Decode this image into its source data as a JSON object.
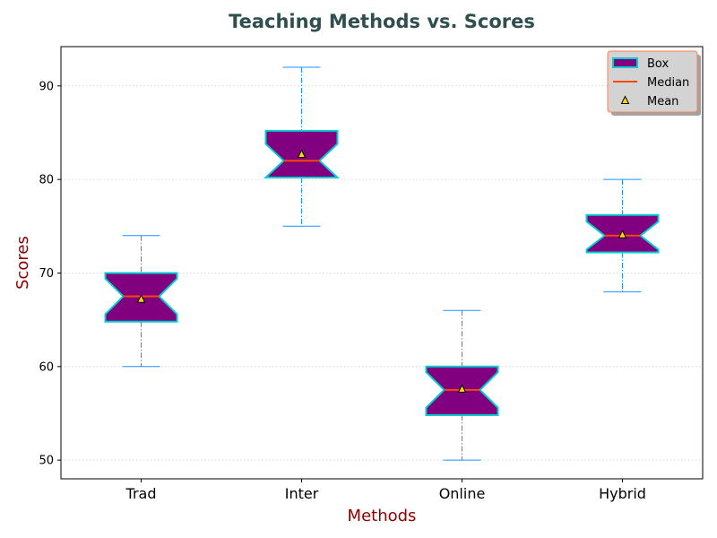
{
  "chart_data": {
    "type": "boxplot",
    "title": "Teaching Methods vs. Scores",
    "xlabel": "Methods",
    "ylabel": "Scores",
    "ylim": [
      48,
      94.2
    ],
    "yticks": [
      50,
      60,
      70,
      80,
      90
    ],
    "grid": "y-dotted",
    "legend_position": "top-right",
    "legend": [
      {
        "key": "box",
        "label": "Box"
      },
      {
        "key": "median",
        "label": "Median"
      },
      {
        "key": "mean",
        "label": "Mean"
      }
    ],
    "categories": [
      "Trad",
      "Inter",
      "Online",
      "Hybrid"
    ],
    "boxes": [
      {
        "name": "Trad",
        "whisker_low": 60,
        "q1": 64.8,
        "median": 67.5,
        "q3": 70,
        "whisker_high": 74,
        "mean": 67.2,
        "notch_low": 65.6,
        "notch_high": 69.4
      },
      {
        "name": "Inter",
        "whisker_low": 75,
        "q1": 80.2,
        "median": 82,
        "q3": 85.2,
        "whisker_high": 92,
        "mean": 82.7,
        "notch_low": 80.2,
        "notch_high": 83.8
      },
      {
        "name": "Online",
        "whisker_low": 50,
        "q1": 54.8,
        "median": 57.5,
        "q3": 60,
        "whisker_high": 66,
        "mean": 57.6,
        "notch_low": 55.6,
        "notch_high": 59.4
      },
      {
        "name": "Hybrid",
        "whisker_low": 68,
        "q1": 72.2,
        "median": 74,
        "q3": 76.2,
        "whisker_high": 80,
        "mean": 74.1,
        "notch_low": 72.5,
        "notch_high": 75.5
      }
    ],
    "colors": {
      "box_fill": "#800080",
      "box_edge": "#00ced1",
      "whisker": "#1e90ff",
      "median": "#ff4500",
      "mean_fill": "#ffd700",
      "mean_edge": "#000000",
      "title": "#2f4f4f",
      "axis_label": "#8b0000",
      "grid": "#cccccc",
      "legend_bg": "#d3d3d3",
      "legend_edge": "#ff7f50"
    }
  }
}
